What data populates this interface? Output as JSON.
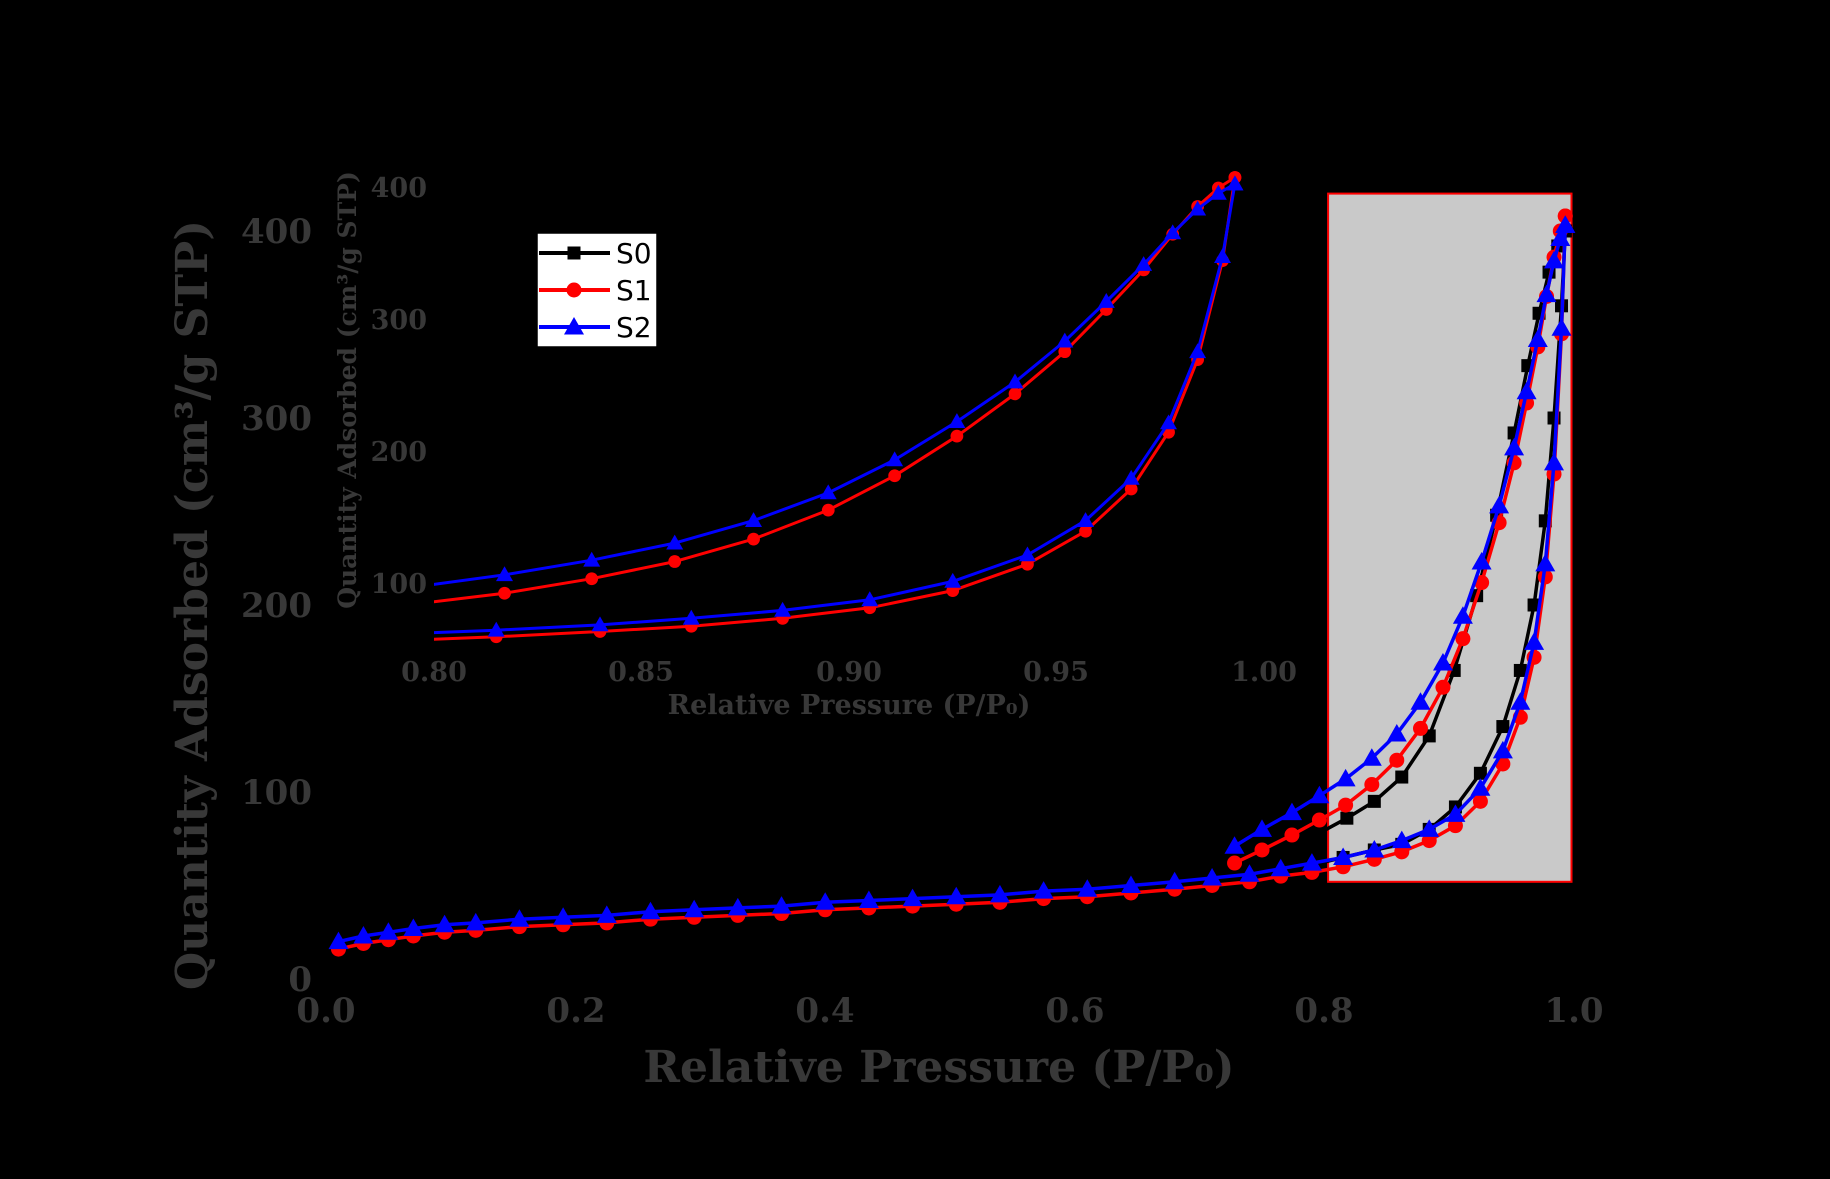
{
  "chart_data": {
    "type": "line",
    "title": "",
    "background_color": "#000000",
    "text_color": "#383838",
    "axes_main": {
      "xlabel": "Relative Pressure (P/P₀)",
      "ylabel": "Quantity Adsorbed (cm³/g STP)",
      "xtick_labels": [
        "0.0",
        "0.2",
        "0.4",
        "0.6",
        "0.8",
        "1.0"
      ],
      "ytick_labels": [
        "0",
        "100",
        "200",
        "300",
        "400"
      ],
      "xlim": [
        0.0,
        1.05
      ],
      "ylim": [
        0,
        430
      ],
      "grid": false
    },
    "axes_inset": {
      "xlabel": "Relative Pressure (P/P₀)",
      "ylabel": "Quantity Adsorbed (cm³/g STP)",
      "xtick_labels": [
        "0.80",
        "0.85",
        "0.90",
        "0.95",
        "1.00"
      ],
      "ytick_labels": [
        "100",
        "200",
        "300",
        "400"
      ],
      "xlim": [
        0.8,
        1.0
      ],
      "ylim": [
        50,
        437
      ],
      "grid": false
    },
    "highlight_region": {
      "x0": 0.803,
      "x1": 0.998,
      "y0": 52,
      "y1": 420,
      "fill": "#c9c9c9",
      "border_color": "#ff0000"
    },
    "legend": {
      "position": "upper-left-of-inset",
      "background": "#ffffff"
    },
    "series": [
      {
        "name": "S0",
        "color": "#000000",
        "marker": "square",
        "adsorption": {
          "P": [
            0.01,
            0.03,
            0.05,
            0.07,
            0.095,
            0.12,
            0.155,
            0.19,
            0.225,
            0.26,
            0.295,
            0.33,
            0.365,
            0.4,
            0.435,
            0.47,
            0.505,
            0.54,
            0.575,
            0.61,
            0.645,
            0.68,
            0.71,
            0.74,
            0.765,
            0.79,
            0.815,
            0.84,
            0.862,
            0.884,
            0.905,
            0.925,
            0.943,
            0.957,
            0.968,
            0.977,
            0.984,
            0.99,
            0.993
          ],
          "V": [
            18,
            21,
            23,
            25,
            27,
            28,
            30,
            31,
            32,
            34,
            35,
            36,
            37,
            39,
            40,
            41,
            42,
            43,
            45,
            46,
            48,
            50,
            52,
            55,
            58,
            61,
            65,
            69,
            72,
            80,
            92,
            110,
            135,
            165,
            200,
            245,
            300,
            360,
            400
          ]
        },
        "desorption": {
          "P": [
            0.993,
            0.987,
            0.98,
            0.972,
            0.963,
            0.952,
            0.938,
            0.922,
            0.904,
            0.884,
            0.862,
            0.84,
            0.818,
            0.796,
            0.774,
            0.75,
            0.728
          ],
          "V": [
            400,
            392,
            378,
            356,
            328,
            292,
            248,
            205,
            165,
            130,
            108,
            95,
            86,
            78,
            71,
            64,
            58
          ]
        }
      },
      {
        "name": "S1",
        "color": "#ff0000",
        "marker": "circle",
        "adsorption": {
          "P": [
            0.01,
            0.03,
            0.05,
            0.07,
            0.095,
            0.12,
            0.155,
            0.19,
            0.225,
            0.26,
            0.295,
            0.33,
            0.365,
            0.4,
            0.435,
            0.47,
            0.505,
            0.54,
            0.575,
            0.61,
            0.645,
            0.68,
            0.71,
            0.74,
            0.765,
            0.79,
            0.815,
            0.84,
            0.862,
            0.884,
            0.905,
            0.925,
            0.943,
            0.957,
            0.968,
            0.977,
            0.984,
            0.99,
            0.993
          ],
          "V": [
            16,
            19,
            21,
            23,
            25,
            26,
            28,
            29,
            30,
            32,
            33,
            34,
            35,
            37,
            38,
            39,
            40,
            41,
            43,
            44,
            46,
            48,
            50,
            52,
            55,
            57,
            60,
            64,
            68,
            74,
            82,
            95,
            115,
            140,
            172,
            215,
            270,
            345,
            408
          ]
        },
        "desorption": {
          "P": [
            0.993,
            0.989,
            0.984,
            0.978,
            0.971,
            0.962,
            0.952,
            0.94,
            0.926,
            0.911,
            0.895,
            0.877,
            0.858,
            0.838,
            0.817,
            0.796,
            0.774,
            0.75,
            0.728
          ],
          "V": [
            408,
            400,
            386,
            365,
            338,
            308,
            276,
            244,
            212,
            182,
            156,
            134,
            117,
            104,
            93,
            85,
            77,
            69,
            62
          ]
        }
      },
      {
        "name": "S2",
        "color": "#0000ff",
        "marker": "triangle-up",
        "adsorption": {
          "P": [
            0.01,
            0.03,
            0.05,
            0.07,
            0.095,
            0.12,
            0.155,
            0.19,
            0.225,
            0.26,
            0.295,
            0.33,
            0.365,
            0.4,
            0.435,
            0.47,
            0.505,
            0.54,
            0.575,
            0.61,
            0.645,
            0.68,
            0.71,
            0.74,
            0.765,
            0.79,
            0.815,
            0.84,
            0.862,
            0.884,
            0.905,
            0.925,
            0.943,
            0.957,
            0.968,
            0.977,
            0.984,
            0.99,
            0.993
          ],
          "V": [
            20,
            23,
            25,
            27,
            29,
            30,
            32,
            33,
            34,
            36,
            37,
            38,
            39,
            41,
            42,
            43,
            44,
            45,
            47,
            48,
            50,
            52,
            54,
            56,
            59,
            62,
            65,
            69,
            74,
            80,
            88,
            102,
            122,
            148,
            180,
            222,
            276,
            348,
            403
          ]
        },
        "desorption": {
          "P": [
            0.993,
            0.989,
            0.984,
            0.978,
            0.971,
            0.962,
            0.952,
            0.94,
            0.926,
            0.911,
            0.895,
            0.877,
            0.858,
            0.838,
            0.817,
            0.796,
            0.774,
            0.75,
            0.728
          ],
          "V": [
            403,
            396,
            384,
            366,
            342,
            314,
            284,
            253,
            223,
            194,
            169,
            148,
            131,
            118,
            107,
            98,
            89,
            80,
            71
          ]
        }
      }
    ]
  }
}
